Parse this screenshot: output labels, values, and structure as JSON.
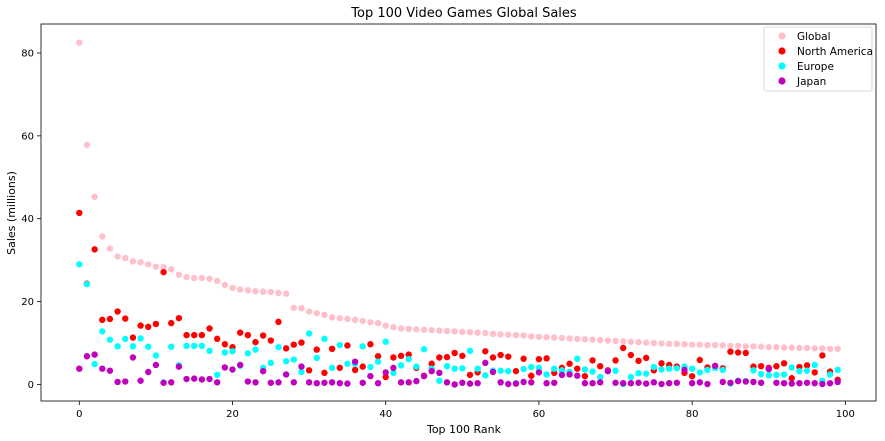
{
  "chart_data": {
    "type": "scatter",
    "title": "Top 100 Video Games Global Sales",
    "xlabel": "Top 100 Rank",
    "ylabel": "Sales (millions)",
    "xlim": [
      -5,
      104
    ],
    "ylim": [
      -4,
      87
    ],
    "xticks": [
      0,
      20,
      40,
      60,
      80,
      100
    ],
    "yticks": [
      0,
      20,
      40,
      60,
      80
    ],
    "grid": false,
    "legend_position": "top-right",
    "series": [
      {
        "name": "Global",
        "color": "#ffc0cb",
        "values": [
          82.5,
          57.8,
          45.3,
          35.7,
          32.8,
          30.9,
          30.5,
          29.7,
          29.5,
          29.0,
          28.4,
          28.3,
          27.8,
          26.5,
          25.9,
          25.7,
          25.7,
          25.5,
          25.0,
          24.0,
          23.3,
          22.9,
          22.7,
          22.5,
          22.4,
          22.3,
          22.1,
          21.9,
          18.5,
          18.4,
          17.6,
          17.2,
          16.8,
          16.2,
          16.0,
          15.8,
          15.6,
          15.3,
          15.0,
          14.8,
          14.2,
          13.8,
          13.5,
          13.4,
          13.3,
          13.2,
          13.1,
          13.0,
          12.9,
          12.8,
          12.7,
          12.6,
          12.5,
          12.4,
          12.2,
          12.1,
          12.0,
          11.9,
          11.8,
          11.6,
          11.5,
          11.4,
          11.3,
          11.2,
          11.1,
          11.0,
          10.9,
          10.8,
          10.7,
          10.6,
          10.5,
          10.4,
          10.3,
          10.2,
          10.1,
          10.0,
          9.9,
          9.8,
          9.8,
          9.7,
          9.6,
          9.6,
          9.5,
          9.5,
          9.4,
          9.3,
          9.3,
          9.2,
          9.2,
          9.1,
          9.0,
          9.0,
          8.9,
          8.9,
          8.8,
          8.8,
          8.7,
          8.7,
          8.6,
          8.6
        ]
      },
      {
        "name": "North America",
        "color": "#ff0000",
        "values": [
          41.4,
          24.3,
          32.6,
          15.6,
          15.8,
          17.6,
          15.9,
          11.3,
          14.2,
          13.9,
          14.6,
          27.1,
          14.8,
          16.0,
          11.9,
          11.9,
          11.9,
          13.5,
          11.0,
          9.7,
          9.0,
          12.5,
          11.9,
          10.2,
          11.8,
          10.6,
          15.1,
          8.7,
          9.6,
          10.1,
          3.4,
          8.4,
          2.8,
          8.6,
          4.0,
          9.4,
          3.5,
          4.3,
          9.7,
          6.8,
          1.8,
          6.5,
          6.9,
          7.2,
          4.0,
          2.1,
          5.0,
          6.5,
          6.6,
          7.6,
          6.9,
          2.3,
          2.9,
          8.0,
          6.5,
          7.1,
          6.7,
          3.2,
          6.2,
          2.1,
          6.1,
          6.3,
          2.8,
          4.0,
          5.0,
          3.8,
          2.0,
          5.8,
          4.4,
          3.4,
          5.8,
          8.8,
          7.1,
          5.7,
          6.4,
          3.4,
          5.1,
          4.7,
          4.3,
          2.8,
          2.0,
          5.9,
          4.1,
          4.1,
          3.9,
          7.9,
          7.7,
          7.6,
          4.3,
          4.4,
          4.0,
          4.4,
          5.1,
          1.5,
          4.2,
          4.6,
          2.9,
          7.0,
          3.1,
          1.1
        ]
      },
      {
        "name": "Europe",
        "color": "#00ffff",
        "values": [
          29.0,
          24.2,
          4.9,
          12.8,
          10.8,
          9.2,
          11.0,
          9.2,
          11.1,
          9.1,
          7.0,
          0.5,
          9.1,
          4.6,
          9.3,
          9.3,
          9.3,
          8.1,
          2.3,
          7.7,
          8.0,
          4.5,
          7.5,
          8.4,
          4.0,
          5.2,
          9.0,
          5.6,
          6.0,
          3.0,
          12.3,
          6.4,
          11.0,
          4.0,
          9.5,
          5.0,
          5.0,
          9.2,
          4.2,
          5.5,
          10.3,
          2.8,
          4.6,
          6.1,
          4.3,
          8.5,
          3.8,
          0.9,
          4.4,
          3.8,
          3.9,
          8.1,
          3.8,
          2.2,
          3.3,
          3.3,
          3.2,
          0.3,
          3.7,
          4.2,
          4.0,
          2.4,
          3.8,
          3.4,
          3.0,
          6.2,
          3.6,
          3.1,
          1.8,
          3.2,
          3.3,
          0.1,
          1.8,
          2.7,
          2.6,
          4.2,
          3.6,
          3.8,
          3.9,
          4.3,
          3.8,
          2.9,
          3.5,
          4.0,
          3.5,
          0.2,
          0.9,
          0.8,
          3.4,
          2.5,
          2.2,
          2.3,
          2.4,
          4.1,
          3.2,
          3.3,
          4.7,
          0.9,
          2.4,
          3.5
        ]
      },
      {
        "name": "Japan",
        "color": "#bf00bf",
        "values": [
          3.8,
          6.8,
          7.2,
          3.8,
          3.3,
          0.6,
          0.7,
          6.5,
          0.9,
          3.0,
          4.7,
          0.4,
          0.5,
          4.3,
          1.3,
          1.4,
          1.2,
          1.3,
          0.5,
          4.1,
          3.6,
          4.7,
          0.7,
          0.5,
          3.2,
          0.4,
          0.5,
          2.4,
          0.5,
          4.3,
          0.5,
          0.3,
          0.4,
          0.5,
          0.3,
          0.2,
          5.5,
          0.4,
          2.0,
          0.3,
          2.9,
          4.0,
          0.5,
          0.5,
          0.8,
          2.0,
          3.2,
          2.8,
          0.5,
          0.0,
          0.4,
          0.2,
          0.3,
          5.2,
          3.0,
          0.5,
          0.1,
          0.2,
          0.6,
          0.5,
          2.9,
          0.3,
          0.4,
          2.3,
          2.4,
          2.1,
          0.3,
          0.3,
          0.5,
          3.2,
          0.4,
          0.3,
          0.3,
          0.4,
          0.2,
          0.5,
          0.1,
          0.3,
          0.4,
          3.5,
          0.3,
          0.5,
          0.1,
          4.5,
          0.6,
          0.4,
          0.8,
          0.7,
          0.6,
          0.4,
          3.7,
          0.4,
          0.3,
          0.2,
          0.3,
          0.4,
          0.3,
          0.1,
          0.3,
          0.6
        ]
      }
    ]
  }
}
